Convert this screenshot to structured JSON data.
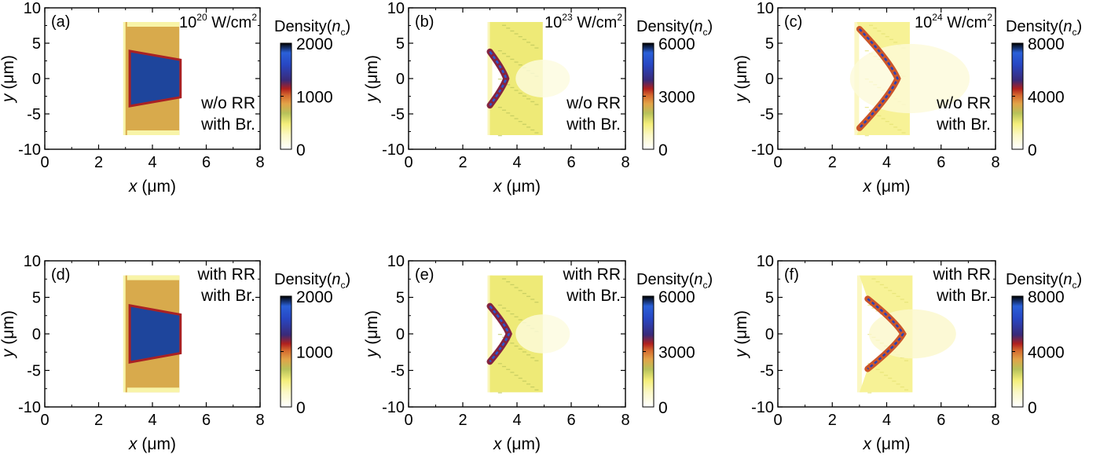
{
  "figure": {
    "colorscale": [
      [
        0.0,
        "#ffffff"
      ],
      [
        0.13,
        "#fbf8c8"
      ],
      [
        0.24,
        "#f4ee7a"
      ],
      [
        0.34,
        "#b7c25a"
      ],
      [
        0.43,
        "#e2a348"
      ],
      [
        0.51,
        "#d4682e"
      ],
      [
        0.57,
        "#b0201e"
      ],
      [
        0.65,
        "#3a2a78"
      ],
      [
        0.8,
        "#2747c4"
      ],
      [
        0.91,
        "#2a60d8"
      ],
      [
        1.0,
        "#000000"
      ]
    ]
  },
  "chart_data": [
    {
      "type": "heatmap",
      "panel": "(a)",
      "intensity_base": "10",
      "intensity_exp": "20",
      "intensity_unit": "W/cm",
      "intensity_unit_exp": "2",
      "annotation": [
        "w/o RR",
        "with Br."
      ],
      "xlabel_var": "x",
      "xlabel_unit": "(μm)",
      "ylabel_var": "y",
      "ylabel_unit": "(μm)",
      "xlim": [
        0,
        8
      ],
      "ylim": [
        -10,
        10
      ],
      "xticks": [
        0,
        2,
        4,
        6,
        8
      ],
      "yticks": [
        -10,
        -5,
        0,
        5,
        10
      ],
      "colorbar": {
        "label": "Density(",
        "label_var": "n",
        "label_sub": "c",
        "label_close": ")",
        "range": [
          0,
          2000
        ],
        "ticks": [
          0,
          1000,
          2000
        ]
      },
      "target": {
        "x_front": 3.0,
        "x_rear": 5.0,
        "y_half": 8.0,
        "background_density": 820,
        "fringe_density": 350
      },
      "compressed_region": {
        "x_front": 3.2,
        "x_rear": 5.0,
        "y_half_front": 3.7,
        "y_half_rear": 2.5,
        "density": 1870,
        "edge_density": 1150
      }
    },
    {
      "type": "heatmap",
      "panel": "(b)",
      "intensity_base": "10",
      "intensity_exp": "23",
      "intensity_unit": "W/cm",
      "intensity_unit_exp": "2",
      "annotation": [
        "w/o RR",
        "with Br."
      ],
      "xlabel_var": "x",
      "xlabel_unit": "(μm)",
      "ylabel_var": "y",
      "ylabel_unit": "(μm)",
      "xlim": [
        0,
        8
      ],
      "ylim": [
        -10,
        10
      ],
      "xticks": [
        0,
        2,
        4,
        6,
        8
      ],
      "yticks": [
        -10,
        -5,
        0,
        5,
        10
      ],
      "colorbar": {
        "label": "Density(",
        "label_var": "n",
        "label_sub": "c",
        "label_close": ")",
        "range": [
          0,
          6000
        ],
        "ticks": [
          0,
          3000,
          6000
        ]
      },
      "target": {
        "x_front": 3.0,
        "x_rear": 4.95,
        "y_half": 8.0,
        "background_density": 1500,
        "fringe_density": 900
      },
      "bow": {
        "x_tip": 3.6,
        "x_ends": 3.0,
        "y_half": 3.8,
        "peak_density": 5200,
        "shell_density": 3600,
        "plume_density": 450,
        "plume_length": 1.0
      }
    },
    {
      "type": "heatmap",
      "panel": "(c)",
      "intensity_base": "10",
      "intensity_exp": "24",
      "intensity_unit": "W/cm",
      "intensity_unit_exp": "2",
      "annotation": [
        "w/o RR",
        "with Br."
      ],
      "xlabel_var": "x",
      "xlabel_unit": "(μm)",
      "ylabel_var": "y",
      "ylabel_unit": "(μm)",
      "xlim": [
        0,
        8
      ],
      "ylim": [
        -10,
        10
      ],
      "xticks": [
        0,
        2,
        4,
        6,
        8
      ],
      "yticks": [
        -10,
        -5,
        0,
        5,
        10
      ],
      "colorbar": {
        "label": "Density(",
        "label_var": "n",
        "label_sub": "c",
        "label_close": ")",
        "range": [
          0,
          8000
        ],
        "ticks": [
          0,
          4000,
          8000
        ]
      },
      "target": {
        "x_front": 2.9,
        "x_rear": 4.85,
        "y_half": 8.0,
        "background_density": 1600,
        "fringe_density": 1100
      },
      "bow": {
        "x_tip": 4.4,
        "x_ends": 3.0,
        "y_half": 7.0,
        "peak_density": 6200,
        "shell_density": 4200,
        "plume_density": 700,
        "plume_length": 2.2
      }
    },
    {
      "type": "heatmap",
      "panel": "(d)",
      "intensity_base": "",
      "intensity_exp": "",
      "intensity_unit": "",
      "intensity_unit_exp": "",
      "annotation": [
        "with RR",
        "with Br."
      ],
      "xlabel_var": "x",
      "xlabel_unit": "(μm)",
      "ylabel_var": "y",
      "ylabel_unit": "(μm)",
      "xlim": [
        0,
        8
      ],
      "ylim": [
        -10,
        10
      ],
      "xticks": [
        0,
        2,
        4,
        6,
        8
      ],
      "yticks": [
        -10,
        -5,
        0,
        5,
        10
      ],
      "colorbar": {
        "label": "Density(",
        "label_var": "n",
        "label_sub": "c",
        "label_close": ")",
        "range": [
          0,
          2000
        ],
        "ticks": [
          0,
          1000,
          2000
        ]
      },
      "target": {
        "x_front": 3.0,
        "x_rear": 5.0,
        "y_half": 8.0,
        "background_density": 820,
        "fringe_density": 350
      },
      "compressed_region": {
        "x_front": 3.2,
        "x_rear": 5.0,
        "y_half_front": 3.7,
        "y_half_rear": 2.5,
        "density": 1870,
        "edge_density": 1150
      }
    },
    {
      "type": "heatmap",
      "panel": "(e)",
      "intensity_base": "",
      "intensity_exp": "",
      "intensity_unit": "",
      "intensity_unit_exp": "",
      "annotation": [
        "with RR",
        "with Br."
      ],
      "xlabel_var": "x",
      "xlabel_unit": "(μm)",
      "ylabel_var": "y",
      "ylabel_unit": "(μm)",
      "xlim": [
        0,
        8
      ],
      "ylim": [
        -10,
        10
      ],
      "xticks": [
        0,
        2,
        4,
        6,
        8
      ],
      "yticks": [
        -10,
        -5,
        0,
        5,
        10
      ],
      "colorbar": {
        "label": "Density(",
        "label_var": "n",
        "label_sub": "c",
        "label_close": ")",
        "range": [
          0,
          6000
        ],
        "ticks": [
          0,
          3000,
          6000
        ]
      },
      "target": {
        "x_front": 3.0,
        "x_rear": 4.95,
        "y_half": 8.0,
        "background_density": 1500,
        "fringe_density": 900
      },
      "bow": {
        "x_tip": 3.7,
        "x_ends": 3.0,
        "y_half": 3.8,
        "peak_density": 5200,
        "shell_density": 3600,
        "plume_density": 450,
        "plume_length": 1.0
      }
    },
    {
      "type": "heatmap",
      "panel": "(f)",
      "intensity_base": "",
      "intensity_exp": "",
      "intensity_unit": "",
      "intensity_unit_exp": "",
      "annotation": [
        "with RR",
        "with Br."
      ],
      "xlabel_var": "x",
      "xlabel_unit": "(μm)",
      "ylabel_var": "y",
      "ylabel_unit": "(μm)",
      "xlim": [
        0,
        8
      ],
      "ylim": [
        -10,
        10
      ],
      "xticks": [
        0,
        2,
        4,
        6,
        8
      ],
      "yticks": [
        -10,
        -5,
        0,
        5,
        10
      ],
      "colorbar": {
        "label": "Density(",
        "label_var": "n",
        "label_sub": "c",
        "label_close": ")",
        "range": [
          0,
          8000
        ],
        "ticks": [
          0,
          4000,
          8000
        ]
      },
      "target": {
        "x_front": 3.0,
        "x_rear": 4.95,
        "y_half": 8.0,
        "background_density": 1600,
        "fringe_density": 1100
      },
      "bow": {
        "x_tip": 4.6,
        "x_ends": 3.3,
        "y_half": 4.8,
        "peak_density": 6200,
        "shell_density": 4200,
        "plume_density": 1000,
        "plume_length": 1.6
      }
    }
  ]
}
